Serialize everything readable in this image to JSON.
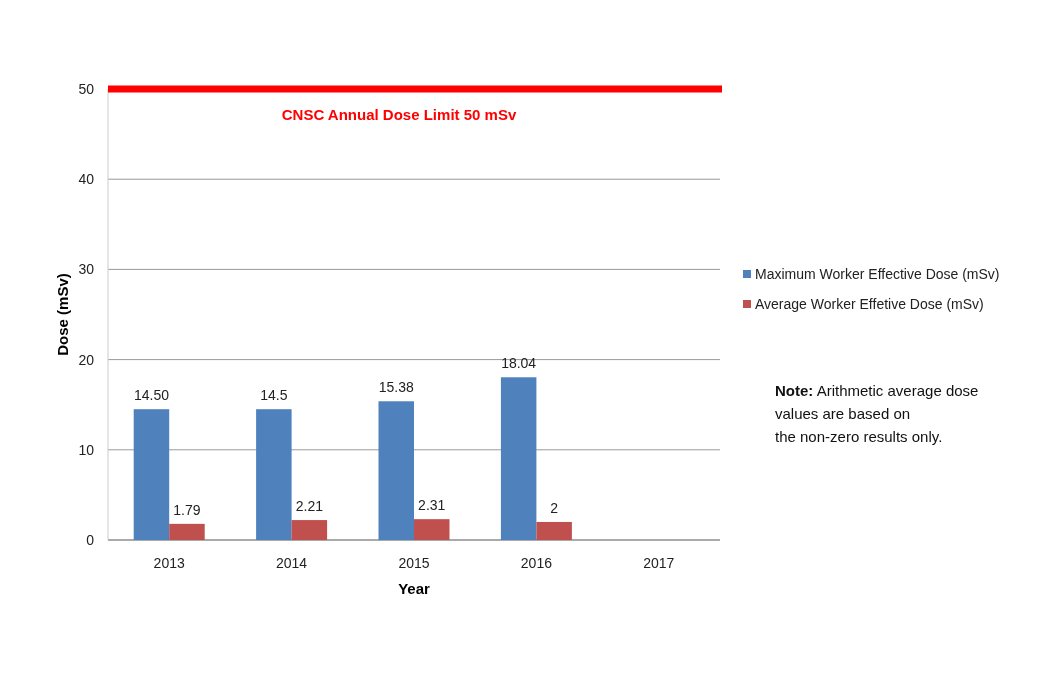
{
  "chart_data": {
    "type": "bar",
    "xlabel": "Year",
    "ylabel": "Dose (mSv)",
    "categories": [
      "2013",
      "2014",
      "2015",
      "2016",
      "2017"
    ],
    "series": [
      {
        "name": "Maximum Worker Effective Dose (mSv)",
        "color": "#4f81bd",
        "values": [
          14.5,
          14.5,
          15.38,
          18.04,
          null
        ],
        "value_labels": [
          "14.50",
          "14.5",
          "15.38",
          "18.04",
          null
        ]
      },
      {
        "name": "Average Worker Effetive Dose (mSv)",
        "color": "#c0504d",
        "values": [
          1.79,
          2.21,
          2.31,
          2,
          null
        ],
        "value_labels": [
          "1.79",
          "2.21",
          "2.31",
          "2",
          null
        ]
      }
    ],
    "ylim": [
      0,
      50
    ],
    "yticks": [
      0,
      10,
      20,
      30,
      40,
      50
    ],
    "grid": "y",
    "legend": "right",
    "ref_lines": [
      {
        "axis": "y",
        "value": 50,
        "label": "CNSC Annual Dose Limit 50 mSv",
        "color": "#ff0000"
      }
    ],
    "annotations": [
      "Note: Arithmetic average dose values are based on the non-zero results only."
    ]
  }
}
